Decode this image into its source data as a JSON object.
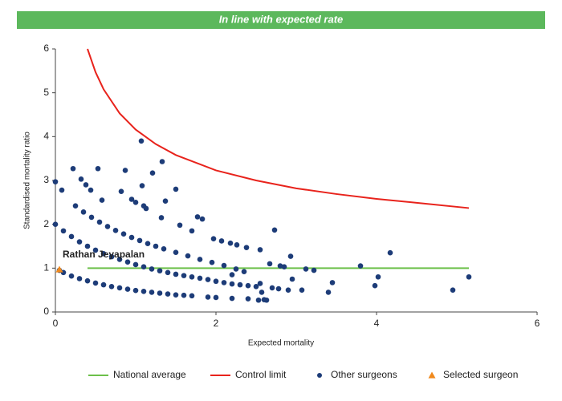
{
  "chart_data": {
    "type": "scatter",
    "title": "In line with expected rate",
    "x_label": "Expected mortality",
    "y_label": "Standardised mortality ratio",
    "annotation": "Rathan Jeyapalan",
    "xlim": [
      0,
      6
    ],
    "xticks": [
      0,
      2,
      4,
      6
    ],
    "ylim": [
      0,
      6
    ],
    "yticks": [
      0,
      1,
      2,
      3,
      4,
      5,
      6
    ],
    "grid": false,
    "legend": "bottom",
    "series": [
      {
        "name": "National average",
        "mark": "line",
        "color": "#6cc04a",
        "x": [
          0.4,
          5.15
        ],
        "values": [
          1,
          1
        ]
      },
      {
        "name": "Control limit",
        "mark": "line",
        "color": "#e8231c",
        "x": [
          0.4,
          0.5,
          0.6,
          0.8,
          1.0,
          1.25,
          1.5,
          2.0,
          2.5,
          3.0,
          3.5,
          4.0,
          4.5,
          5.15
        ],
        "values": [
          6.0,
          5.47,
          5.08,
          4.53,
          4.16,
          3.83,
          3.58,
          3.23,
          3.0,
          2.82,
          2.69,
          2.58,
          2.49,
          2.37
        ]
      },
      {
        "name": "Other surgeons",
        "mark": "circle",
        "color": "#1d3c78",
        "x": [
          0.05,
          0.1,
          0.2,
          0.3,
          0.4,
          0.5,
          0.6,
          0.7,
          0.8,
          0.9,
          1.0,
          1.1,
          1.2,
          1.3,
          1.4,
          1.5,
          1.6,
          1.7,
          1.9,
          2.0,
          2.2,
          2.4,
          2.6,
          0,
          0.1,
          0.2,
          0.3,
          0.4,
          0.5,
          0.6,
          0.7,
          0.8,
          0.9,
          1.0,
          1.1,
          1.2,
          1.3,
          1.4,
          1.5,
          1.6,
          1.7,
          1.8,
          1.9,
          2.0,
          2.1,
          2.2,
          2.3,
          2.5,
          0.25,
          0.35,
          0.45,
          0.55,
          0.65,
          0.75,
          0.85,
          0.95,
          1.05,
          1.15,
          1.25,
          1.35,
          1.5,
          1.65,
          1.8,
          1.95,
          2.1,
          2.25,
          2.35,
          0,
          0.08,
          0.22,
          0.32,
          0.38,
          0.44,
          0.53,
          0.58,
          0.82,
          0.87,
          0.95,
          1.0,
          1.07,
          1.08,
          1.1,
          1.13,
          1.21,
          1.33,
          1.37,
          1.5,
          1.32,
          1.77,
          1.83,
          1.55,
          1.7,
          1.97,
          2.07,
          2.18,
          2.26,
          2.38,
          2.55,
          2.73,
          2.67,
          2.8,
          2.85,
          2.93,
          3.12,
          3.22,
          3.45,
          3.8,
          4.02,
          4.17,
          3.98,
          4.95,
          5.15,
          3.4,
          3.07,
          2.9,
          2.78,
          2.7,
          2.55,
          2.57,
          2.63,
          2.53,
          2.95,
          2.4,
          2.2
        ],
        "values": [
          0.95,
          0.9,
          0.82,
          0.76,
          0.71,
          0.66,
          0.62,
          0.58,
          0.55,
          0.52,
          0.49,
          0.47,
          0.45,
          0.43,
          0.41,
          0.39,
          0.38,
          0.37,
          0.34,
          0.33,
          0.31,
          0.3,
          0.28,
          2,
          1.85,
          1.72,
          1.6,
          1.5,
          1.41,
          1.33,
          1.26,
          1.2,
          1.14,
          1.08,
          1.03,
          0.98,
          0.94,
          0.9,
          0.86,
          0.83,
          0.8,
          0.77,
          0.74,
          0.7,
          0.67,
          0.64,
          0.62,
          0.58,
          2.42,
          2.28,
          2.16,
          2.05,
          1.95,
          1.86,
          1.78,
          1.7,
          1.63,
          1.56,
          1.5,
          1.44,
          1.36,
          1.28,
          1.2,
          1.13,
          1.06,
          0.98,
          0.92,
          2.97,
          2.78,
          3.27,
          3.03,
          2.9,
          2.78,
          3.27,
          2.55,
          2.75,
          3.23,
          2.57,
          2.5,
          3.9,
          2.88,
          2.42,
          2.36,
          3.17,
          3.43,
          2.53,
          2.8,
          2.15,
          2.17,
          2.12,
          1.98,
          1.85,
          1.67,
          1.62,
          1.57,
          1.53,
          1.47,
          1.42,
          1.87,
          1.1,
          1.05,
          1.03,
          1.27,
          0.98,
          0.95,
          0.67,
          1.05,
          0.8,
          1.35,
          0.6,
          0.5,
          0.8,
          0.45,
          0.5,
          0.5,
          0.53,
          0.55,
          0.65,
          0.45,
          0.27,
          0.27,
          0.75,
          0.6,
          0.85
        ]
      },
      {
        "name": "Selected surgeon",
        "mark": "triangle",
        "color": "#f0891c",
        "x": [
          0.05
        ],
        "values": [
          0.97
        ]
      }
    ]
  }
}
